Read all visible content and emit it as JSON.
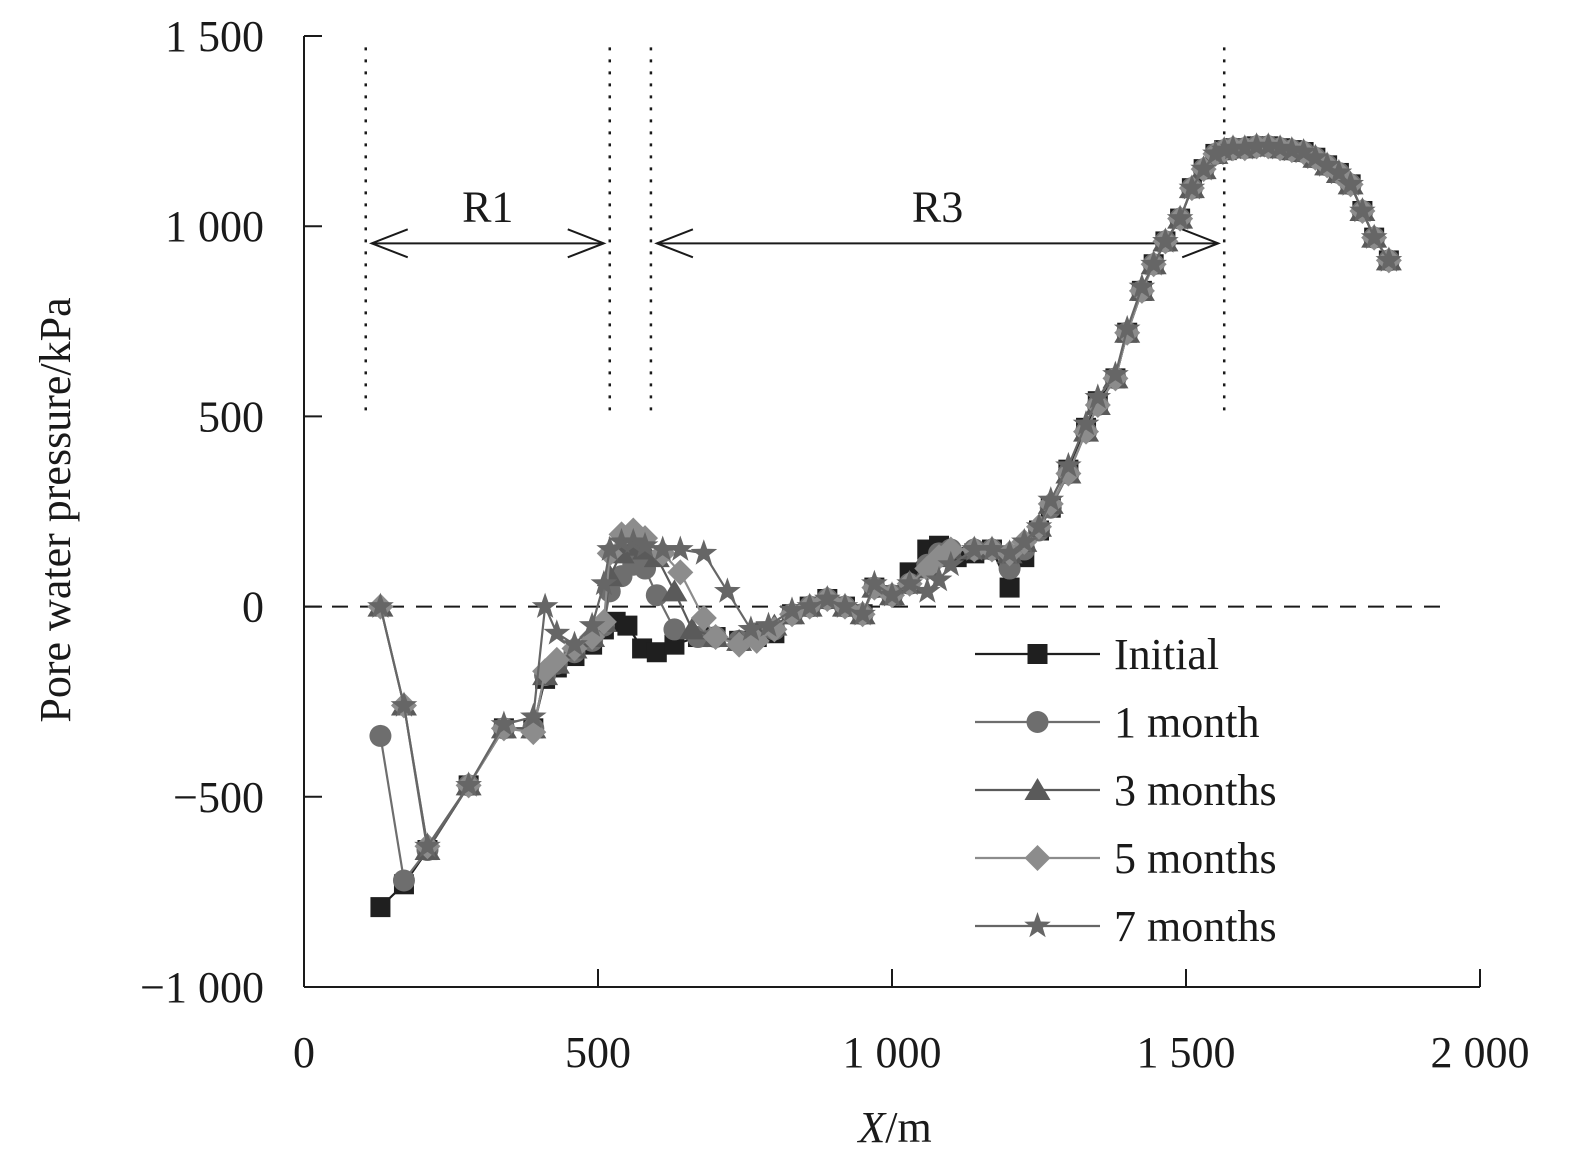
{
  "chart_data": {
    "type": "line",
    "xlabel_var": "X",
    "xlabel_unit": "/m",
    "ylabel": "Pore water pressure/kPa",
    "xlim": [
      0,
      2000
    ],
    "ylim": [
      -1000,
      1500
    ],
    "xticks": [
      0,
      500,
      1000,
      1500,
      2000
    ],
    "xtick_labels": [
      "0",
      "500",
      "1 000",
      "1 500",
      "2 000"
    ],
    "yticks": [
      -1000,
      -500,
      0,
      500,
      1000,
      1500
    ],
    "ytick_labels": [
      "−1 000",
      "−500",
      "0",
      "500",
      "1 000",
      "1 500"
    ],
    "grid": false,
    "legend_position": "bottom-right",
    "zero_line": {
      "y": 0,
      "style": "dashed"
    },
    "regions": [
      {
        "label": "R1",
        "x_start": 105,
        "x_end": 520
      },
      {
        "label": "R3",
        "x_start": 590,
        "x_end": 1565
      }
    ],
    "colors": {
      "Initial": "#1f1f1f",
      "1 month": "#6e6e6e",
      "3 months": "#5a5a5a",
      "5 months": "#8c8c8c",
      "7 months": "#666666"
    },
    "series": [
      {
        "name": "Initial",
        "marker": "square",
        "x": [
          130,
          170,
          210,
          280,
          340,
          390,
          410,
          430,
          460,
          490,
          510,
          530,
          550,
          575,
          600,
          630,
          670,
          700,
          740,
          770,
          800,
          830,
          860,
          890,
          920,
          950,
          970,
          1000,
          1030,
          1060,
          1080,
          1110,
          1140,
          1170,
          1200,
          1225,
          1250,
          1270,
          1300,
          1330,
          1350,
          1380,
          1400,
          1425,
          1445,
          1465,
          1490,
          1510,
          1530,
          1550,
          1565,
          1580,
          1600,
          1620,
          1640,
          1660,
          1680,
          1700,
          1720,
          1740,
          1760,
          1780,
          1800,
          1820,
          1845
        ],
        "y": [
          -790,
          -730,
          -640,
          -470,
          -320,
          -320,
          -190,
          -160,
          -130,
          -100,
          -60,
          -40,
          -50,
          -110,
          -120,
          -100,
          -80,
          -80,
          -90,
          -80,
          -70,
          -20,
          0,
          20,
          0,
          -20,
          50,
          30,
          90,
          150,
          160,
          130,
          140,
          150,
          50,
          130,
          200,
          260,
          360,
          470,
          540,
          600,
          720,
          830,
          900,
          960,
          1020,
          1100,
          1150,
          1190,
          1200,
          1205,
          1205,
          1210,
          1210,
          1205,
          1200,
          1195,
          1180,
          1160,
          1140,
          1110,
          1040,
          970,
          910
        ]
      },
      {
        "name": "1 month",
        "marker": "circle",
        "x": [
          130,
          170,
          210,
          280,
          340,
          390,
          410,
          430,
          460,
          490,
          510,
          520,
          540,
          560,
          580,
          600,
          630,
          670,
          700,
          740,
          770,
          800,
          830,
          860,
          890,
          920,
          950,
          970,
          1000,
          1030,
          1060,
          1080,
          1100,
          1140,
          1170,
          1200,
          1225,
          1250,
          1270,
          1300,
          1330,
          1350,
          1380,
          1400,
          1425,
          1445,
          1465,
          1490,
          1510,
          1530,
          1550,
          1565,
          1580,
          1600,
          1620,
          1640,
          1660,
          1680,
          1700,
          1720,
          1740,
          1760,
          1780,
          1800,
          1820,
          1845
        ],
        "y": [
          -340,
          -720,
          -640,
          -470,
          -320,
          -320,
          -180,
          -150,
          -120,
          -90,
          -50,
          40,
          80,
          110,
          100,
          30,
          -60,
          -80,
          -80,
          -90,
          -70,
          -60,
          -20,
          0,
          20,
          0,
          -20,
          50,
          30,
          60,
          110,
          140,
          150,
          150,
          150,
          100,
          150,
          200,
          260,
          350,
          460,
          530,
          600,
          720,
          830,
          900,
          960,
          1020,
          1100,
          1150,
          1190,
          1200,
          1205,
          1205,
          1210,
          1210,
          1205,
          1200,
          1195,
          1180,
          1160,
          1140,
          1110,
          1040,
          970,
          910
        ]
      },
      {
        "name": "3 months",
        "marker": "triangle",
        "x": [
          130,
          170,
          210,
          280,
          340,
          390,
          410,
          430,
          460,
          490,
          510,
          520,
          540,
          560,
          580,
          600,
          630,
          660,
          700,
          740,
          770,
          800,
          830,
          860,
          890,
          920,
          950,
          970,
          1000,
          1030,
          1060,
          1080,
          1100,
          1140,
          1170,
          1200,
          1225,
          1250,
          1270,
          1300,
          1330,
          1350,
          1380,
          1400,
          1425,
          1445,
          1465,
          1490,
          1510,
          1530,
          1550,
          1565,
          1580,
          1600,
          1620,
          1640,
          1660,
          1680,
          1700,
          1720,
          1740,
          1760,
          1780,
          1800,
          1820,
          1845
        ],
        "y": [
          0,
          -260,
          -640,
          -470,
          -320,
          -320,
          -180,
          -150,
          -110,
          -80,
          -40,
          80,
          140,
          160,
          150,
          130,
          40,
          -60,
          -80,
          -90,
          -70,
          -50,
          -20,
          0,
          20,
          0,
          -20,
          50,
          30,
          60,
          100,
          130,
          150,
          150,
          150,
          140,
          170,
          210,
          270,
          350,
          460,
          530,
          600,
          720,
          830,
          900,
          960,
          1020,
          1100,
          1150,
          1190,
          1200,
          1205,
          1205,
          1210,
          1210,
          1205,
          1200,
          1195,
          1180,
          1160,
          1140,
          1110,
          1040,
          970,
          910
        ]
      },
      {
        "name": "5 months",
        "marker": "diamond",
        "x": [
          130,
          170,
          210,
          280,
          340,
          390,
          410,
          430,
          460,
          490,
          510,
          520,
          540,
          560,
          580,
          610,
          640,
          680,
          700,
          740,
          770,
          800,
          830,
          860,
          890,
          920,
          950,
          970,
          1000,
          1030,
          1060,
          1080,
          1100,
          1140,
          1170,
          1200,
          1225,
          1250,
          1270,
          1300,
          1330,
          1350,
          1380,
          1400,
          1425,
          1445,
          1465,
          1490,
          1510,
          1530,
          1550,
          1565,
          1580,
          1600,
          1620,
          1640,
          1660,
          1680,
          1700,
          1720,
          1740,
          1760,
          1780,
          1800,
          1820,
          1845
        ],
        "y": [
          0,
          -260,
          -630,
          -470,
          -320,
          -330,
          -170,
          -140,
          -110,
          -80,
          -40,
          140,
          190,
          200,
          180,
          140,
          90,
          -30,
          -80,
          -100,
          -90,
          -60,
          -20,
          0,
          20,
          0,
          -20,
          50,
          30,
          60,
          100,
          130,
          150,
          150,
          150,
          140,
          170,
          210,
          270,
          350,
          460,
          530,
          600,
          720,
          830,
          900,
          960,
          1020,
          1100,
          1150,
          1190,
          1200,
          1205,
          1205,
          1210,
          1210,
          1205,
          1200,
          1195,
          1180,
          1160,
          1140,
          1110,
          1040,
          970,
          910
        ]
      },
      {
        "name": "7 months",
        "marker": "star",
        "x": [
          130,
          170,
          210,
          280,
          340,
          390,
          410,
          430,
          460,
          490,
          510,
          520,
          540,
          560,
          580,
          610,
          640,
          680,
          720,
          760,
          790,
          830,
          860,
          890,
          920,
          950,
          970,
          1000,
          1030,
          1060,
          1080,
          1100,
          1140,
          1170,
          1200,
          1225,
          1250,
          1270,
          1300,
          1330,
          1350,
          1380,
          1400,
          1425,
          1445,
          1465,
          1490,
          1510,
          1530,
          1550,
          1565,
          1580,
          1600,
          1620,
          1640,
          1660,
          1680,
          1700,
          1720,
          1740,
          1760,
          1780,
          1800,
          1820,
          1845
        ],
        "y": [
          0,
          -260,
          -630,
          -470,
          -310,
          -290,
          0,
          -70,
          -100,
          -50,
          60,
          150,
          170,
          170,
          160,
          150,
          150,
          140,
          40,
          -60,
          -50,
          -10,
          0,
          20,
          0,
          -20,
          60,
          30,
          60,
          40,
          70,
          110,
          150,
          150,
          140,
          170,
          210,
          280,
          370,
          480,
          550,
          610,
          730,
          840,
          900,
          960,
          1020,
          1100,
          1150,
          1190,
          1200,
          1205,
          1205,
          1210,
          1210,
          1205,
          1200,
          1195,
          1180,
          1160,
          1140,
          1110,
          1040,
          970,
          910
        ]
      }
    ]
  }
}
